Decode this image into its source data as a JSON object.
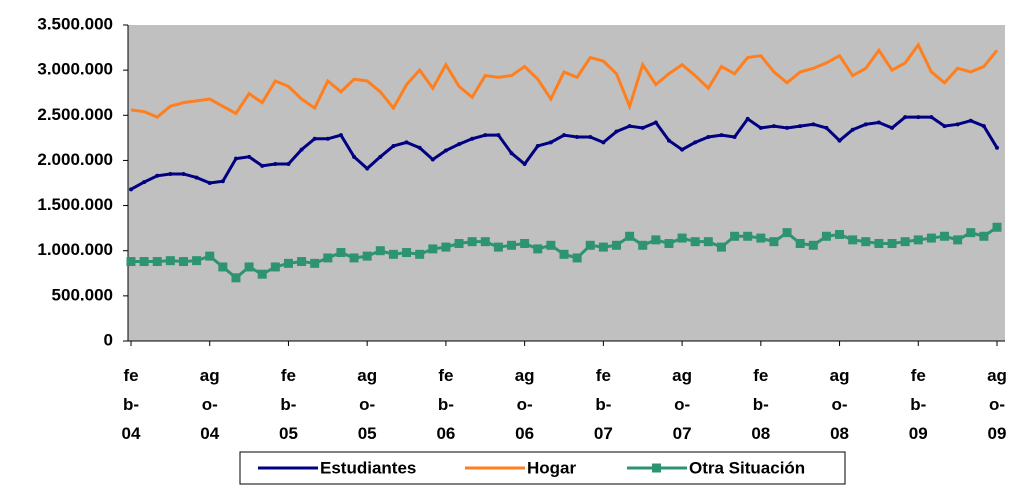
{
  "chart_data": {
    "type": "line",
    "categories": [
      "feb-04",
      null,
      null,
      null,
      null,
      null,
      "ago-04",
      null,
      null,
      null,
      null,
      null,
      "feb-05",
      null,
      null,
      null,
      null,
      null,
      "ago-05",
      null,
      null,
      null,
      null,
      null,
      "feb-06",
      null,
      null,
      null,
      null,
      null,
      "ago-06",
      null,
      null,
      null,
      null,
      null,
      "feb-07",
      null,
      null,
      null,
      null,
      null,
      "ago-07",
      null,
      null,
      null,
      null,
      null,
      "feb-08",
      null,
      null,
      null,
      null,
      null,
      "ago-08",
      null,
      null,
      null,
      null,
      null,
      "feb-09",
      null,
      null,
      null,
      null,
      null,
      "ago-09"
    ],
    "series": [
      {
        "name": "Estudiantes",
        "color": "#000080",
        "values": [
          1680000,
          1760000,
          1830000,
          1850000,
          1850000,
          1810000,
          1750000,
          1770000,
          2020000,
          2040000,
          1940000,
          1960000,
          1960000,
          2120000,
          2240000,
          2240000,
          2280000,
          2040000,
          1910000,
          2040000,
          2160000,
          2200000,
          2140000,
          2010000,
          2110000,
          2180000,
          2240000,
          2280000,
          2280000,
          2080000,
          1960000,
          2160000,
          2200000,
          2280000,
          2260000,
          2260000,
          2200000,
          2320000,
          2380000,
          2360000,
          2420000,
          2220000,
          2120000,
          2200000,
          2260000,
          2280000,
          2260000,
          2460000,
          2360000,
          2380000,
          2360000,
          2380000,
          2400000,
          2360000,
          2220000,
          2340000,
          2400000,
          2420000,
          2360000,
          2480000,
          2480000,
          2480000,
          2380000,
          2400000,
          2440000,
          2380000,
          2140000
        ]
      },
      {
        "name": "Hogar",
        "color": "#ff7f1e",
        "values": [
          2560000,
          2540000,
          2480000,
          2600000,
          2640000,
          2660000,
          2680000,
          2600000,
          2520000,
          2740000,
          2640000,
          2880000,
          2820000,
          2680000,
          2580000,
          2880000,
          2760000,
          2900000,
          2880000,
          2760000,
          2580000,
          2840000,
          3000000,
          2800000,
          3060000,
          2820000,
          2700000,
          2940000,
          2920000,
          2940000,
          3040000,
          2900000,
          2680000,
          2980000,
          2920000,
          3140000,
          3100000,
          2960000,
          2600000,
          3060000,
          2840000,
          2960000,
          3060000,
          2940000,
          2800000,
          3040000,
          2960000,
          3140000,
          3160000,
          2980000,
          2860000,
          2980000,
          3020000,
          3080000,
          3160000,
          2940000,
          3020000,
          3220000,
          3000000,
          3080000,
          3280000,
          2980000,
          2860000,
          3020000,
          2980000,
          3040000,
          3220000
        ]
      },
      {
        "name": "Otra Situación",
        "color": "#2e9470",
        "values": [
          880000,
          880000,
          880000,
          890000,
          880000,
          890000,
          940000,
          820000,
          700000,
          820000,
          740000,
          820000,
          860000,
          880000,
          860000,
          920000,
          980000,
          920000,
          940000,
          1000000,
          960000,
          980000,
          960000,
          1020000,
          1040000,
          1080000,
          1100000,
          1100000,
          1040000,
          1060000,
          1080000,
          1020000,
          1060000,
          960000,
          920000,
          1060000,
          1040000,
          1060000,
          1160000,
          1060000,
          1120000,
          1080000,
          1140000,
          1100000,
          1100000,
          1040000,
          1160000,
          1160000,
          1140000,
          1100000,
          1200000,
          1080000,
          1060000,
          1160000,
          1180000,
          1120000,
          1100000,
          1080000,
          1080000,
          1100000,
          1120000,
          1140000,
          1160000,
          1120000,
          1200000,
          1160000,
          1260000
        ]
      }
    ],
    "ylim": [
      0,
      3500000
    ],
    "yticks": [
      0,
      {
        "value": 500000,
        "label": "500.000"
      },
      {
        "value": 1000000,
        "label": "1.000.000"
      },
      {
        "value": 1500000,
        "label": "1.500.000"
      },
      {
        "value": 2000000,
        "label": "2.000.000"
      },
      {
        "value": 2500000,
        "label": "2.500.000"
      },
      {
        "value": 3000000,
        "label": "3.000.000"
      },
      {
        "value": 3500000,
        "label": "3.500.000"
      }
    ]
  }
}
